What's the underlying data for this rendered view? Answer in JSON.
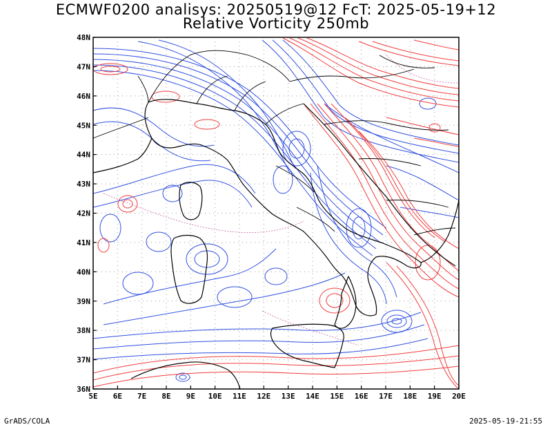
{
  "header": {
    "title_line1": "ECMWF0200 analisys: 20250519@12 FcT: 2025-05-19+12",
    "title_line2": "Relative Vorticity 250mb"
  },
  "footer": {
    "left": "GrADS/COLA",
    "right": "2025-05-19-21:55"
  },
  "map": {
    "lon_labels": [
      "5E",
      "6E",
      "7E",
      "8E",
      "9E",
      "10E",
      "11E",
      "12E",
      "13E",
      "14E",
      "15E",
      "16E",
      "17E",
      "18E",
      "19E",
      "20E"
    ],
    "lat_labels": [
      "48N",
      "47N",
      "46N",
      "45N",
      "44N",
      "43N",
      "42N",
      "41N",
      "40N",
      "39N",
      "38N",
      "37N",
      "36N"
    ],
    "lon_range": [
      5,
      20
    ],
    "lat_range": [
      36,
      48
    ],
    "colors": {
      "positive_contour": "#f03c3c",
      "negative_contour": "#3050e0",
      "coastline": "#000000",
      "grid": "#9a9a9a"
    }
  }
}
